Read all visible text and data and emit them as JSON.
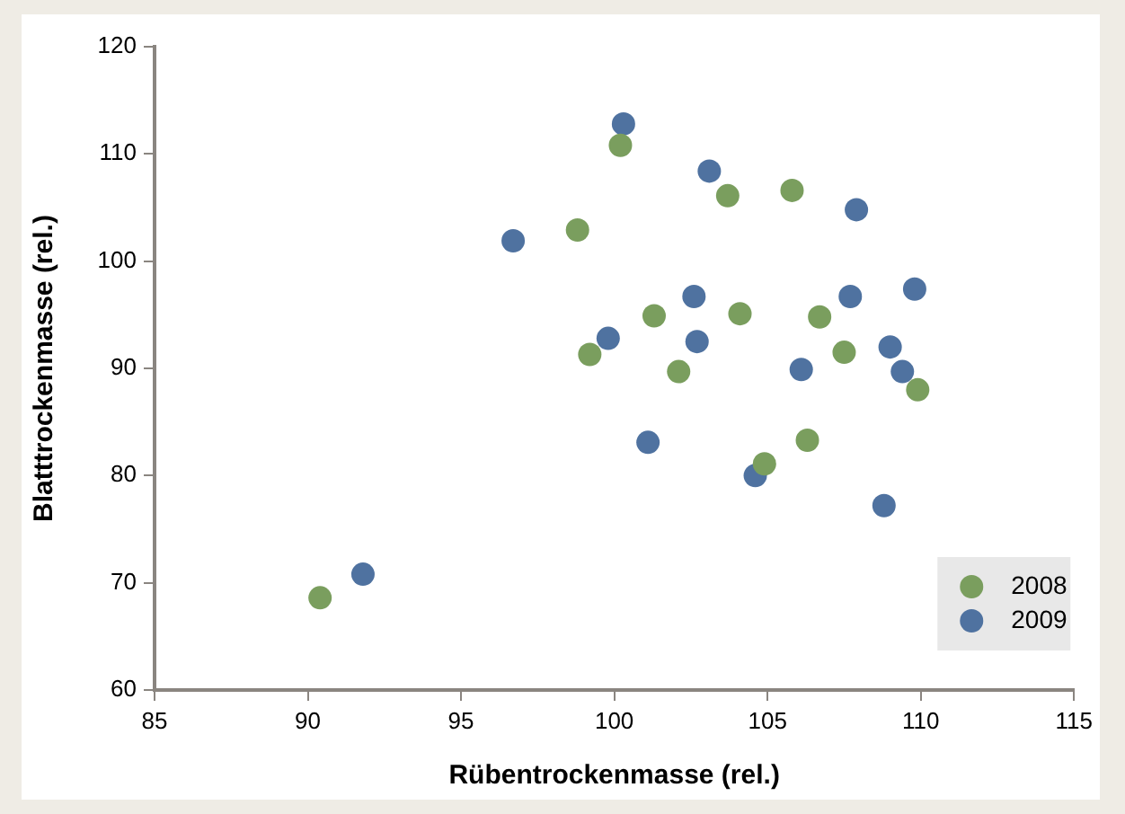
{
  "chart_data": {
    "type": "scatter",
    "xlabel": "Rübentrockenmasse (rel.)",
    "ylabel": "Blatttrockenmasse (rel.)",
    "xlim": [
      85,
      115
    ],
    "xticks": [
      85,
      90,
      95,
      100,
      105,
      110,
      115
    ],
    "ylim": [
      60,
      120
    ],
    "yticks": [
      60,
      70,
      80,
      90,
      100,
      110,
      120
    ],
    "grid": false,
    "legend": "bottom right",
    "marker": "circle",
    "series": [
      {
        "name": "2008",
        "color": "#7a9e5e",
        "x": [
          90.4,
          100.2,
          98.8,
          99.2,
          103.7,
          105.8,
          101.3,
          104.1,
          106.7,
          102.1,
          107.5,
          109.9,
          106.3,
          104.9
        ],
        "values": [
          68.6,
          110.8,
          102.9,
          91.3,
          106.1,
          106.6,
          94.9,
          95.1,
          94.8,
          89.7,
          91.5,
          88.0,
          83.3,
          81.1
        ]
      },
      {
        "name": "2009",
        "color": "#4f72a0",
        "x": [
          100.3,
          96.7,
          99.8,
          91.8,
          103.1,
          107.9,
          102.6,
          107.7,
          109.8,
          102.7,
          109.0,
          106.1,
          109.4,
          101.1,
          104.6,
          108.8
        ],
        "values": [
          112.8,
          101.9,
          92.8,
          70.8,
          108.4,
          104.8,
          96.7,
          96.7,
          97.4,
          92.5,
          92.0,
          89.9,
          89.7,
          83.1,
          80.0,
          77.2
        ]
      }
    ]
  }
}
